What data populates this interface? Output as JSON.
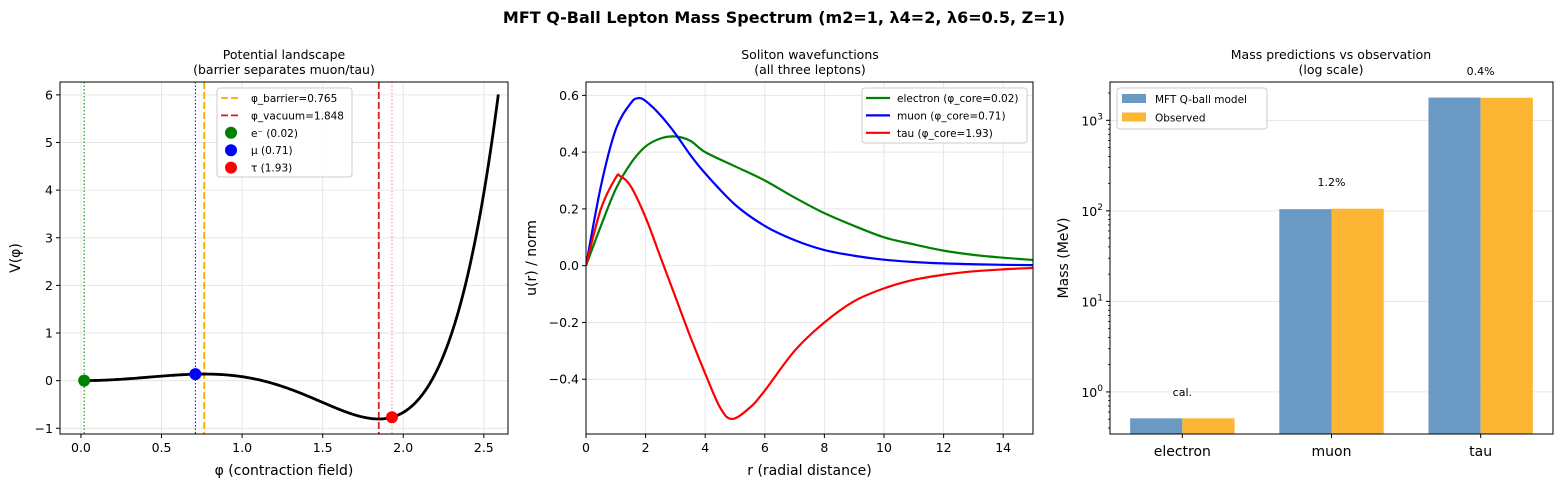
{
  "title": "MFT Q-Ball Lepton Mass Spectrum  (m2=1, λ4=2, λ6=0.5, Z=1)",
  "chart_data": [
    {
      "type": "line",
      "title": [
        "Potential landscape",
        "(barrier separates muon/tau)"
      ],
      "xlabel": "φ (contraction field)",
      "ylabel": "V(φ)",
      "xlim": [
        -0.13,
        2.65
      ],
      "ylim": [
        -1.12,
        6.27
      ],
      "xticks": [
        0.0,
        0.5,
        1.0,
        1.5,
        2.0,
        2.5
      ],
      "xtick_labels": [
        "0.0",
        "0.5",
        "1.0",
        "1.5",
        "2.0",
        "2.5"
      ],
      "yticks": [
        -1,
        0,
        1,
        2,
        3,
        4,
        5,
        6
      ],
      "ytick_labels": [
        "−1",
        "0",
        "1",
        "2",
        "3",
        "4",
        "5",
        "6"
      ],
      "grid": true,
      "legend_placement": "upper-center",
      "potential": {
        "m2": 1,
        "lambda4": 2,
        "lambda6": 0.5,
        "phi_range": [
          0,
          2.59
        ],
        "color": "#000000"
      },
      "vlines": [
        {
          "x": 0.765,
          "label": "φ_barrier=0.765",
          "color": "#FFA500",
          "style": "dashed",
          "legend": true
        },
        {
          "x": 1.848,
          "label": "φ_vacuum=1.848",
          "color": "#D62020",
          "style": "dashed",
          "legend": true
        },
        {
          "x": 0.02,
          "color": "#008000",
          "style": "dotted"
        },
        {
          "x": 0.71,
          "color": "#0000FF",
          "style": "dotted"
        },
        {
          "x": 1.93,
          "color": "#FF8080",
          "style": "dotted"
        }
      ],
      "markers": [
        {
          "x": 0.02,
          "y": 0.0,
          "label": "e⁻ (0.02)",
          "color": "#008000"
        },
        {
          "x": 0.71,
          "y": 0.136,
          "label": "μ (0.71)",
          "color": "#0000FF"
        },
        {
          "x": 1.93,
          "y": -0.768,
          "label": "τ (1.93)",
          "color": "#FF0000"
        }
      ]
    },
    {
      "type": "line",
      "title": [
        "Soliton wavefunctions",
        "(all three leptons)"
      ],
      "xlabel": "r (radial distance)",
      "ylabel": "u(r) / norm",
      "xlim": [
        0,
        15
      ],
      "ylim": [
        -0.593,
        0.647
      ],
      "xticks": [
        0,
        2,
        4,
        6,
        8,
        10,
        12,
        14
      ],
      "xtick_labels": [
        "0",
        "2",
        "4",
        "6",
        "8",
        "10",
        "12",
        "14"
      ],
      "yticks": [
        -0.4,
        -0.2,
        0.0,
        0.2,
        0.4,
        0.6
      ],
      "ytick_labels": [
        "−0.4",
        "−0.2",
        "0.0",
        "0.2",
        "0.4",
        "0.6"
      ],
      "grid": true,
      "legend_placement": "upper-right",
      "series": [
        {
          "name": "electron (φ_core=0.02)",
          "color": "#008000",
          "x": [
            0,
            0.5,
            1,
            1.5,
            2,
            2.5,
            3,
            3.5,
            4,
            5,
            6,
            7,
            8,
            9,
            10,
            11,
            12,
            13,
            14,
            15
          ],
          "y": [
            0,
            0.14,
            0.27,
            0.36,
            0.42,
            0.448,
            0.455,
            0.44,
            0.4,
            0.35,
            0.3,
            0.24,
            0.185,
            0.14,
            0.1,
            0.075,
            0.053,
            0.038,
            0.028,
            0.02
          ]
        },
        {
          "name": "muon (φ_core=0.71)",
          "color": "#0000FF",
          "x": [
            0,
            0.5,
            1,
            1.5,
            1.75,
            2,
            2.5,
            3,
            3.5,
            4,
            5,
            6,
            7,
            8,
            9,
            10,
            11,
            12,
            13,
            14,
            15
          ],
          "y": [
            0,
            0.28,
            0.48,
            0.572,
            0.59,
            0.58,
            0.53,
            0.465,
            0.39,
            0.325,
            0.215,
            0.14,
            0.09,
            0.055,
            0.035,
            0.021,
            0.013,
            0.008,
            0.005,
            0.003,
            0.002
          ]
        },
        {
          "name": "tau (φ_core=1.93)",
          "color": "#FF0000",
          "x": [
            0,
            0.5,
            1,
            1.15,
            1.5,
            2,
            2.5,
            3,
            3.5,
            4,
            4.5,
            4.9,
            5.5,
            6,
            7,
            8,
            9,
            10,
            11,
            12,
            13,
            14,
            15
          ],
          "y": [
            0,
            0.2,
            0.31,
            0.315,
            0.28,
            0.17,
            0.03,
            -0.11,
            -0.25,
            -0.38,
            -0.5,
            -0.54,
            -0.5,
            -0.44,
            -0.3,
            -0.2,
            -0.125,
            -0.08,
            -0.05,
            -0.032,
            -0.02,
            -0.013,
            -0.008
          ]
        }
      ]
    },
    {
      "type": "bar",
      "title": [
        "Mass predictions vs observation",
        "(log scale)"
      ],
      "xlabel": "",
      "ylabel": "Mass (MeV)",
      "yscale": "log",
      "xlim": [
        -0.485,
        2.485
      ],
      "ylim": [
        0.343,
        2650
      ],
      "categories": [
        "electron",
        "muon",
        "tau"
      ],
      "yticks": [
        1,
        10,
        100,
        1000
      ],
      "ytick_exponents": [
        "0",
        "1",
        "2",
        "3"
      ],
      "ytick_base": "10",
      "grid": true,
      "legend_placement": "upper-left",
      "bar_width": 0.35,
      "series": [
        {
          "name": "MFT Q-ball model",
          "color": "#6A9AC4",
          "values": [
            0.511,
            104.4,
            1784
          ]
        },
        {
          "name": "Observed",
          "color": "#FDB534",
          "values": [
            0.511,
            105.66,
            1776.86
          ]
        }
      ],
      "annotations": [
        "cal.",
        "1.2%",
        "0.4%"
      ]
    }
  ]
}
